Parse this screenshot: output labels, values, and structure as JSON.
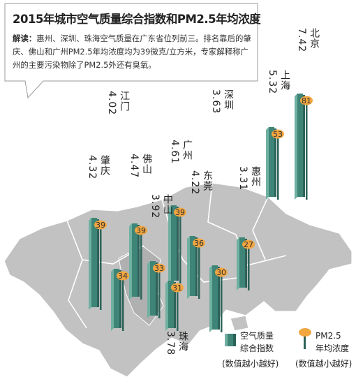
{
  "title": "2015年城市空气质量综合指数和PM2.5年均浓度",
  "note": {
    "lead": "解读：",
    "text": "惠州、深圳、珠海空气质量在广东省位列前三。排名靠后的肇庆、佛山和广州PM2.5年均浓度均为39微克/立方米，专家解释称广州的主要污染物除了PM2.5外还有臭氧。"
  },
  "legend": {
    "aqi_line1": "空气质量",
    "aqi_line2": "综合指数",
    "aqi_note": "(数值越小越好)",
    "pm_line1": "PM2.5",
    "pm_line2": "年均浓度",
    "pm_note": "(数值越小越好)"
  },
  "colors": {
    "bar": "#3e8577",
    "bar_dark": "#2c6359",
    "bar_light": "#6fb0a1",
    "pm_dot": "#f2a640",
    "map": "#c2c2c2",
    "map_edge": "#ffffff"
  },
  "chart_data": {
    "type": "bar",
    "title": "2015年城市空气质量综合指数和PM2.5年均浓度",
    "categories": [
      "肇庆",
      "江门",
      "佛山",
      "中山",
      "广州",
      "珠海",
      "东莞",
      "深圳",
      "惠州",
      "上海",
      "北京"
    ],
    "series": [
      {
        "name": "空气质量综合指数",
        "values": [
          4.32,
          4.02,
          4.47,
          3.92,
          4.61,
          3.78,
          4.22,
          3.63,
          3.31,
          5.32,
          7.42
        ]
      },
      {
        "name": "PM2.5年均浓度",
        "values": [
          39,
          34,
          39,
          33,
          39,
          31,
          36,
          30,
          27,
          53,
          81
        ]
      }
    ],
    "city_labels": [
      {
        "name": "肇庆",
        "value": "4.32"
      },
      {
        "name": "江门",
        "value": "4.02"
      },
      {
        "name": "佛山",
        "value": "4.47"
      },
      {
        "name": "中山",
        "value": "3.92"
      },
      {
        "name": "广州",
        "value": "4.61"
      },
      {
        "name": "珠海",
        "value": "3.78"
      },
      {
        "name": "东莞",
        "value": "4.22"
      },
      {
        "name": "深圳",
        "value": "3.63"
      },
      {
        "name": "惠州",
        "value": "3.31"
      },
      {
        "name": "上海",
        "value": "5.32"
      },
      {
        "name": "北京",
        "value": "7.42"
      }
    ]
  }
}
